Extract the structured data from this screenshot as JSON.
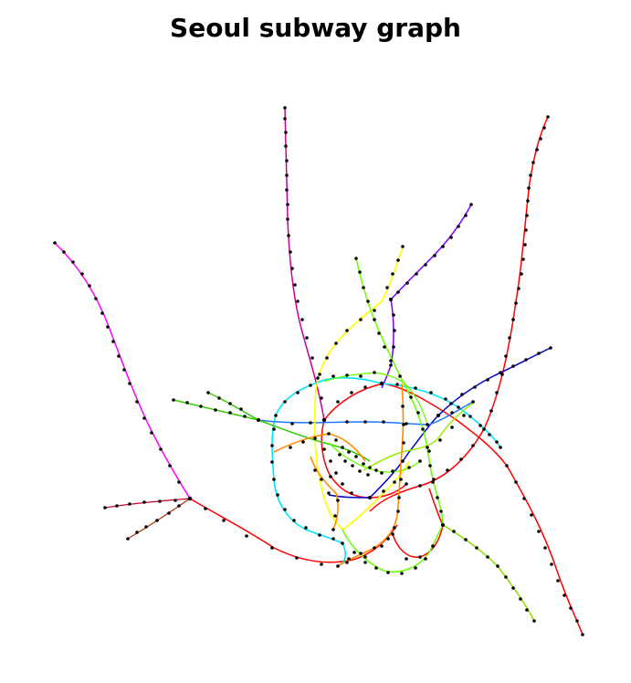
{
  "title": "Seoul subway graph",
  "lines": [
    {
      "id": "line-1",
      "color": "#ff0000"
    },
    {
      "id": "line-2",
      "color": "#ff0000"
    },
    {
      "id": "line-3",
      "color": "#00ffff"
    },
    {
      "id": "line-4",
      "color": "#ff00ff"
    },
    {
      "id": "line-5",
      "color": "#cc0099"
    },
    {
      "id": "line-6",
      "color": "#7a00ff"
    },
    {
      "id": "line-7",
      "color": "#0000ff"
    },
    {
      "id": "line-8",
      "color": "#1e78ff"
    },
    {
      "id": "line-9",
      "color": "#ffff00"
    },
    {
      "id": "line-10",
      "color": "#66ff00"
    },
    {
      "id": "line-11",
      "color": "#ff8c00"
    },
    {
      "id": "line-12",
      "color": "#33cc00"
    }
  ]
}
